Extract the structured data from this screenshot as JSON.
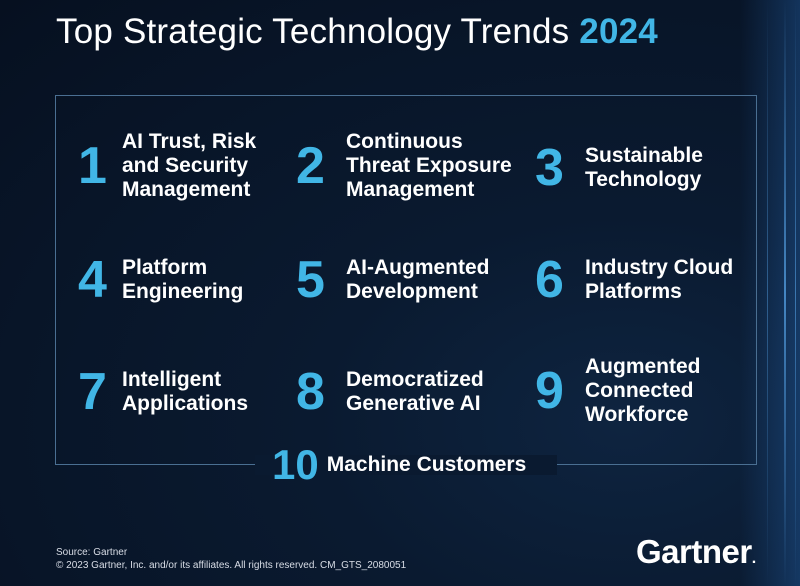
{
  "title": {
    "prefix": "Top Strategic Technology Trends ",
    "year": "2024"
  },
  "trends": [
    {
      "number": "1",
      "label": "AI Trust, Risk\nand Security\nManagement"
    },
    {
      "number": "2",
      "label": "Continuous\nThreat Exposure\nManagement"
    },
    {
      "number": "3",
      "label": "Sustainable\nTechnology"
    },
    {
      "number": "4",
      "label": "Platform\nEngineering"
    },
    {
      "number": "5",
      "label": "AI-Augmented\nDevelopment"
    },
    {
      "number": "6",
      "label": "Industry Cloud\nPlatforms"
    },
    {
      "number": "7",
      "label": "Intelligent\nApplications"
    },
    {
      "number": "8",
      "label": "Democratized\nGenerative AI"
    },
    {
      "number": "9",
      "label": "Augmented\nConnected\nWorkforce"
    },
    {
      "number": "10",
      "label": "Machine Customers"
    }
  ],
  "footer": {
    "source": "Source: Gartner",
    "copyright": "© 2023 Gartner, Inc. and/or its affiliates. All rights reserved. CM_GTS_2080051"
  },
  "logo": {
    "text": "Gartner",
    "mark": "."
  },
  "colors": {
    "accent": "#41b6e6",
    "background": "#0a1a30",
    "frame": "#4a6f92",
    "text": "#ffffff"
  }
}
